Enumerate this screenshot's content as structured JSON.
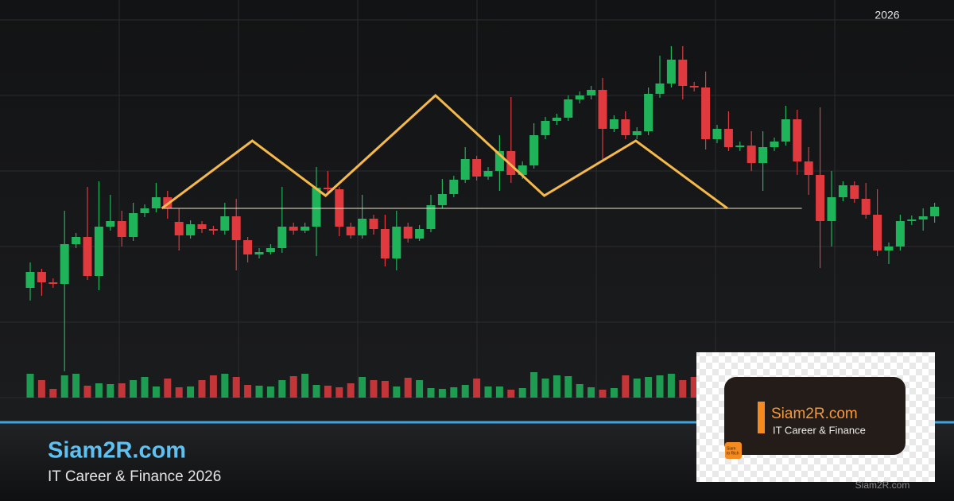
{
  "header": {
    "year": "2026"
  },
  "chart_data": {
    "type": "candlestick",
    "ylim": [
      0,
      100
    ],
    "grid": true,
    "up_color": "#1fb35a",
    "down_color": "#e0393e",
    "open": [
      27.6,
      31.6,
      29,
      28.6,
      38.6,
      40.4,
      30.6,
      43,
      44.4,
      40.4,
      46.4,
      47.6,
      50.4,
      44.2,
      40.8,
      43.6,
      42.4,
      42,
      45.6,
      39.6,
      36,
      36.6,
      37.6,
      43,
      42,
      43,
      52.8,
      52.4,
      43,
      40.8,
      45,
      42.4,
      35,
      43,
      40,
      42.4,
      48.4,
      51.2,
      54.8,
      60,
      55.6,
      57,
      62,
      56,
      58.4,
      66,
      69.6,
      70.4,
      75,
      76,
      77.4,
      67.6,
      70,
      66,
      67,
      76.4,
      79,
      85,
      78.4,
      78,
      65,
      67.6,
      63,
      63.4,
      59,
      63,
      64.4,
      70,
      59.4,
      56,
      44.4,
      50.4,
      53.4,
      50,
      46,
      37,
      38,
      44.4,
      44.8,
      45.6
    ],
    "high": [
      34,
      32.4,
      30,
      47,
      41.4,
      53,
      54.4,
      51,
      47,
      49,
      48.6,
      54,
      52,
      47.6,
      44.6,
      44.4,
      43.2,
      49,
      50,
      40.4,
      37.6,
      38.6,
      53,
      44,
      44,
      58,
      57,
      53,
      44,
      51,
      46,
      46,
      47,
      44,
      43.4,
      51,
      55,
      55.8,
      63,
      60.8,
      58,
      66,
      75.6,
      59.4,
      69,
      70.6,
      71.4,
      76,
      77,
      78.4,
      80.4,
      71,
      72,
      68,
      78,
      86,
      88.4,
      88.4,
      79.4,
      82,
      68.6,
      72,
      64.4,
      67,
      67,
      65.4,
      73.4,
      72.4,
      63,
      73,
      57,
      54.4,
      54.4,
      54,
      52.4,
      39,
      46,
      45.8,
      47.6,
      49
    ],
    "low": [
      24.4,
      25.6,
      27.6,
      6.6,
      37.6,
      29.6,
      27,
      42,
      38,
      39.4,
      45.4,
      46.6,
      45,
      37,
      40,
      41.4,
      41,
      41,
      32,
      34,
      35,
      36,
      36.4,
      41,
      41.4,
      35.6,
      51,
      40.6,
      40,
      40,
      41,
      33,
      32,
      39,
      39.4,
      41.6,
      47.6,
      50.4,
      54,
      54.6,
      54.8,
      52,
      54,
      55,
      57.6,
      65,
      68.6,
      69.6,
      74,
      75,
      60,
      66.8,
      65,
      65,
      66,
      75.4,
      78,
      75,
      77,
      62.4,
      64,
      62,
      62,
      57,
      52,
      62,
      63.4,
      56,
      51,
      32.6,
      38,
      49.4,
      49,
      45,
      35.6,
      33.6,
      37,
      43.4,
      42,
      44
    ],
    "close": [
      31.6,
      29,
      28.6,
      38.6,
      40.4,
      30.6,
      43,
      44.4,
      40.4,
      46.4,
      47.6,
      50.4,
      47.6,
      40.8,
      43.6,
      42.4,
      42,
      45.6,
      39.6,
      36,
      36.6,
      37.6,
      43,
      42,
      43,
      52.8,
      52.4,
      43,
      40.8,
      45,
      42.4,
      35,
      43,
      40,
      42.4,
      48.4,
      51.2,
      54.8,
      60,
      55.6,
      57,
      62,
      56,
      58.4,
      66,
      69.6,
      70.4,
      75,
      76,
      77.4,
      67.6,
      70,
      66,
      67,
      76.4,
      79,
      85,
      78.4,
      78,
      65,
      67.6,
      63,
      63.4,
      59,
      63,
      64.4,
      70,
      59.4,
      56,
      44.4,
      50.4,
      53.4,
      50,
      46,
      37,
      38,
      44.4,
      44.8,
      45.6,
      48
    ],
    "volume": {
      "ylim": [
        0,
        100
      ],
      "values": [
        30,
        22,
        11,
        28,
        30,
        15,
        18,
        17,
        18,
        22,
        26,
        14,
        24,
        13,
        14,
        22,
        28,
        30,
        26,
        16,
        15,
        14,
        22,
        27,
        30,
        16,
        15,
        13,
        18,
        26,
        22,
        21,
        14,
        25,
        22,
        12,
        11,
        13,
        16,
        24,
        14,
        14,
        10,
        12,
        32,
        24,
        28,
        27,
        17,
        13,
        10,
        12,
        28,
        24,
        26,
        28,
        30,
        22,
        26,
        null,
        null,
        null,
        null,
        null,
        null,
        null,
        null,
        null,
        null,
        null,
        null,
        null,
        null,
        null,
        null,
        null,
        null,
        null,
        null,
        null
      ]
    },
    "pattern": {
      "color": "#f5b94a",
      "x": [
        11.5,
        19.4,
        25.8,
        35.4,
        44.9,
        52.9,
        60.9
      ],
      "values": [
        47.6,
        64.6,
        50.8,
        76,
        50.8,
        64.6,
        47.6
      ]
    },
    "neckline": {
      "color": "#efe6cc",
      "value": 47.6,
      "x": [
        11.5,
        67.4
      ]
    }
  },
  "branding": {
    "title": "Siam2R.com",
    "subtitle": "IT Career & Finance 2026"
  },
  "logo_card": {
    "title": "Siam2R.com",
    "subtitle": "IT Career & Finance",
    "logo_line1": "Siam",
    "logo_line2": "to Rich"
  },
  "watermark": "Siam2R.com"
}
